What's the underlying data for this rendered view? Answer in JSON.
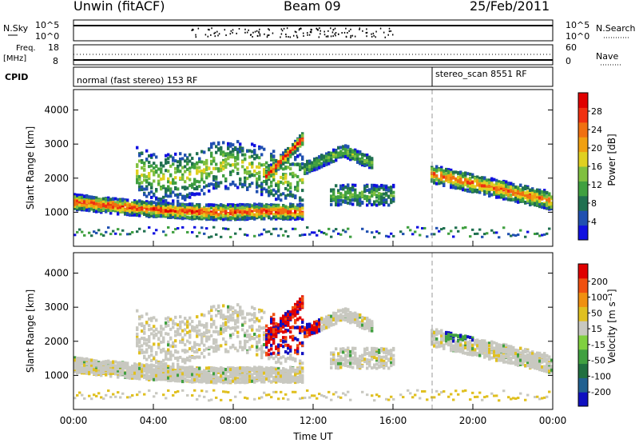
{
  "header": {
    "station": "Unwin (fitACF)",
    "beam": "Beam 09",
    "date": "25/Feb/2011"
  },
  "panels": {
    "nsky": {
      "label": "N.Sky",
      "ticks_left": [
        "10^5",
        "10^0"
      ],
      "ticks_right": [
        "10^5",
        "10^0"
      ],
      "right_label": "N.Search"
    },
    "freq": {
      "label_line1": "Freq.",
      "label_line2": "[MHz]",
      "ticks_left": [
        "18",
        "8"
      ],
      "ticks_right": [
        "60",
        "0"
      ],
      "right_label": "Nave"
    },
    "cpid": {
      "label": "CPID",
      "mode_1": "normal (fast stereo) 153 RF",
      "mode_2": "stereo_scan 8551 RF"
    }
  },
  "chart_data": [
    {
      "type": "heatmap",
      "name": "power",
      "ylabel": "Slant Range [km]",
      "y_ticks": [
        1000,
        2000,
        3000,
        4000
      ],
      "ylim": [
        0,
        4600
      ],
      "colorbar": {
        "label": "Power [dB]",
        "ticks": [
          4,
          8,
          12,
          16,
          20,
          24,
          28
        ],
        "range": [
          0,
          32
        ],
        "colors": [
          "#1010e0",
          "#2050b0",
          "#207050",
          "#40a040",
          "#80c040",
          "#e0d020",
          "#f0a010",
          "#f07010",
          "#f03010",
          "#e00000"
        ]
      }
    },
    {
      "type": "heatmap",
      "name": "velocity",
      "ylabel": "Slant Range [km]",
      "xlabel": "Time UT",
      "y_ticks": [
        1000,
        2000,
        3000,
        4000
      ],
      "ylim": [
        0,
        4600
      ],
      "x_ticks": [
        "00:00",
        "04:00",
        "08:00",
        "12:00",
        "16:00",
        "20:00",
        "00:00"
      ],
      "colorbar": {
        "label": "Velocity [m s⁻¹]",
        "ticks": [
          "200",
          "100",
          "50",
          "15",
          "-15",
          "-50",
          "-100",
          "-200"
        ],
        "colors": [
          "#1010c0",
          "#206090",
          "#207040",
          "#40a040",
          "#80d040",
          "#c8c8c0",
          "#e0c020",
          "#f09010",
          "#f05010",
          "#e00000"
        ]
      }
    }
  ]
}
